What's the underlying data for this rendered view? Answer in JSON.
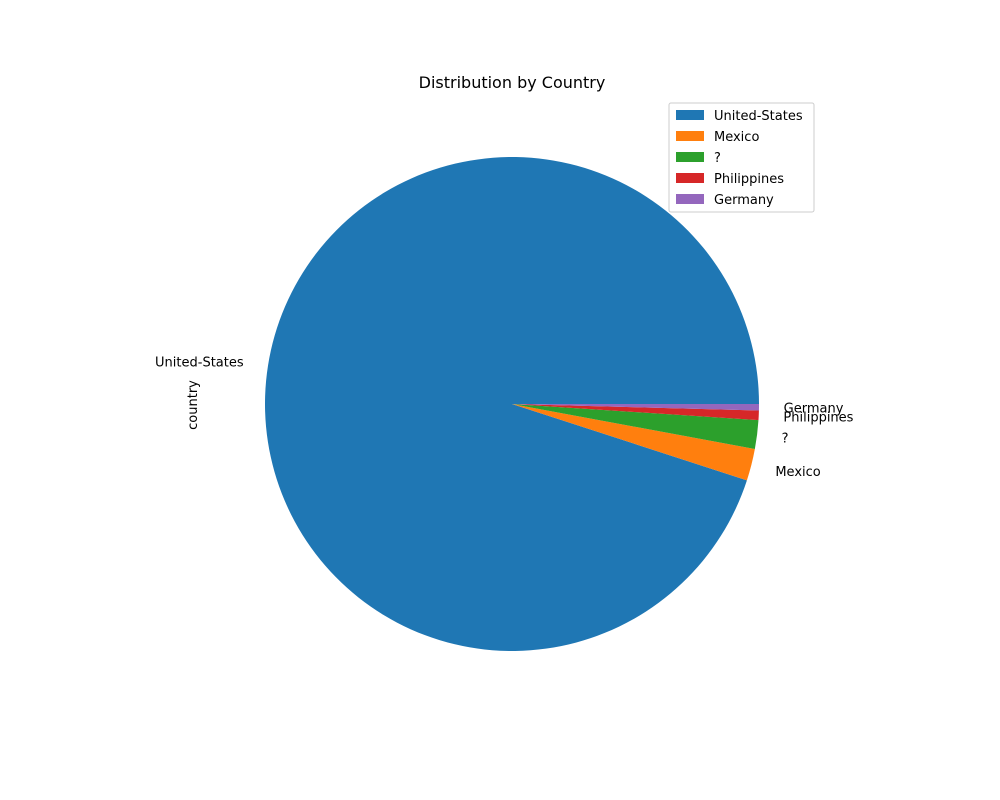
{
  "chart_data": {
    "type": "pie",
    "title": "Distribution by Country",
    "ylabel": "country",
    "categories": [
      "United-States",
      "Mexico",
      "?",
      "Philippines",
      "Germany"
    ],
    "values": [
      91.2,
      2.0,
      1.8,
      0.6,
      0.4
    ],
    "colors": [
      "#1f77b4",
      "#ff7f0e",
      "#2ca02c",
      "#d62728",
      "#9467bd"
    ],
    "legend": {
      "position": "top-right",
      "entries": [
        "United-States",
        "Mexico",
        "?",
        "Philippines",
        "Germany"
      ]
    }
  }
}
